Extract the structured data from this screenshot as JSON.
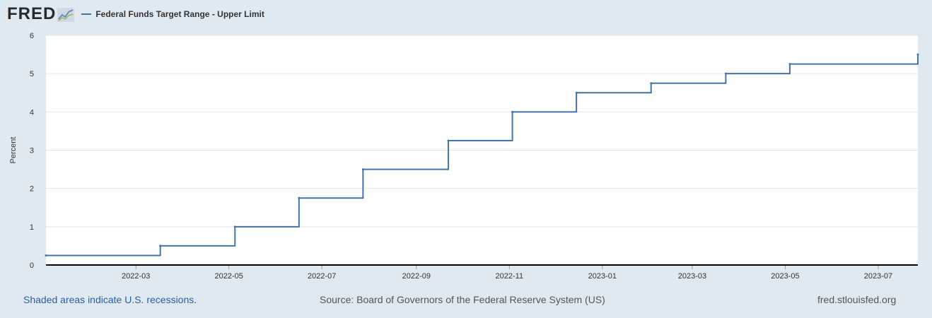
{
  "header": {
    "logo_text": "FRED",
    "legend_label": "Federal Funds Target Range - Upper Limit"
  },
  "colors": {
    "series": "#4572a7",
    "background": "#e1e9f0",
    "plot": "#ffffff"
  },
  "chart_data": {
    "type": "line",
    "title": "",
    "xlabel": "",
    "ylabel": "Percent",
    "ylim": [
      0,
      6
    ],
    "yticks": [
      0,
      1,
      2,
      3,
      4,
      5,
      6
    ],
    "xlim": [
      "2022-01-01",
      "2023-07-27"
    ],
    "xticks": [
      "2022-03",
      "2022-05",
      "2022-07",
      "2022-09",
      "2022-11",
      "2023-01",
      "2023-03",
      "2023-05",
      "2023-07"
    ],
    "grid": true,
    "step": true,
    "series": [
      {
        "name": "Federal Funds Target Range - Upper Limit",
        "points": [
          {
            "x": "2022-01-01",
            "y": 0.25
          },
          {
            "x": "2022-03-17",
            "y": 0.5
          },
          {
            "x": "2022-05-05",
            "y": 1.0
          },
          {
            "x": "2022-06-16",
            "y": 1.75
          },
          {
            "x": "2022-07-28",
            "y": 2.5
          },
          {
            "x": "2022-09-22",
            "y": 3.25
          },
          {
            "x": "2022-11-03",
            "y": 4.0
          },
          {
            "x": "2022-12-15",
            "y": 4.5
          },
          {
            "x": "2023-02-02",
            "y": 4.75
          },
          {
            "x": "2023-03-23",
            "y": 5.0
          },
          {
            "x": "2023-05-04",
            "y": 5.25
          },
          {
            "x": "2023-07-27",
            "y": 5.5
          }
        ]
      }
    ]
  },
  "footer": {
    "recession_note": "Shaded areas indicate U.S. recessions.",
    "source": "Source: Board of Governors of the Federal Reserve System (US)",
    "site": "fred.stlouisfed.org"
  }
}
